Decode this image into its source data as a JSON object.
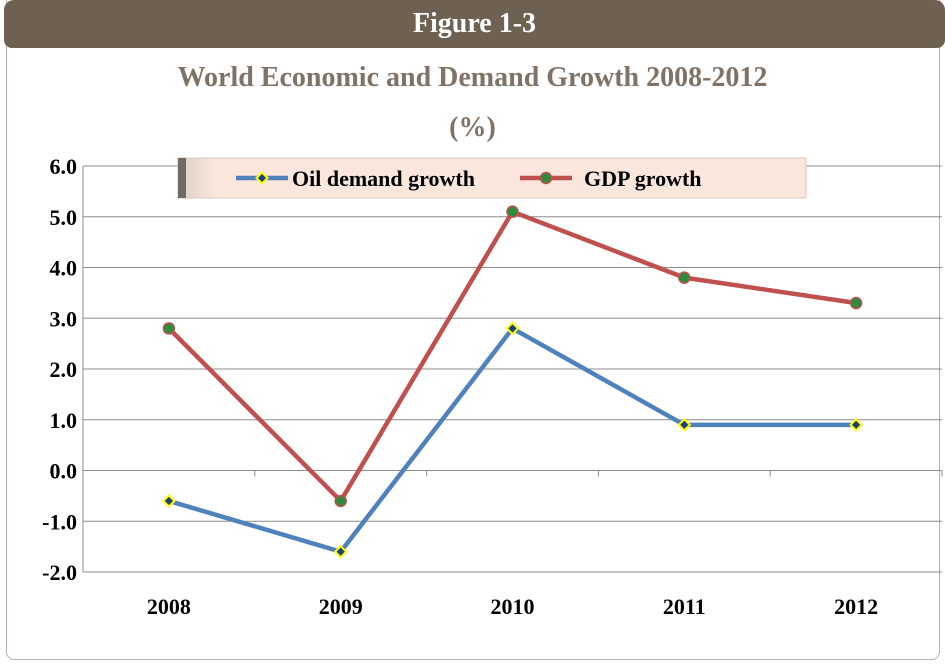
{
  "figure_label": "Figure 1-3",
  "chart_data": {
    "type": "line",
    "title": "World Economic and Demand Growth 2008-2012",
    "subtitle": "(%)",
    "xlabel": "",
    "ylabel": "",
    "categories": [
      "2008",
      "2009",
      "2010",
      "2011",
      "2012"
    ],
    "ylim": [
      -2.0,
      6.0
    ],
    "yticks": [
      "6.0",
      "5.0",
      "4.0",
      "3.0",
      "2.0",
      "1.0",
      "0.0",
      "-1.0",
      "-2.0"
    ],
    "grid": true,
    "legend_position": "top",
    "series": [
      {
        "name": "Oil demand growth",
        "values": [
          -0.6,
          -1.6,
          2.8,
          0.9,
          0.9
        ],
        "color": "#4f81bd",
        "marker": "diamond",
        "marker_fill": "#1f3f7a",
        "marker_edge": "#ffff00"
      },
      {
        "name": "GDP growth",
        "values": [
          2.8,
          -0.6,
          5.1,
          3.8,
          3.3
        ],
        "color": "#c0504d",
        "marker": "circle",
        "marker_fill": "#2e8b3c",
        "marker_edge": "#c0504d"
      }
    ]
  }
}
